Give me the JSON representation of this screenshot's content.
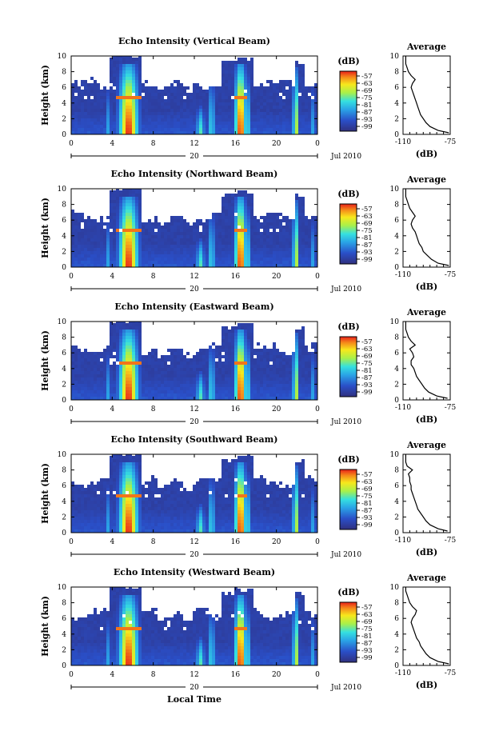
{
  "chart_data": [
    {
      "type": "heatmap",
      "title": "Echo Intensity (Vertical Beam)",
      "ylabel": "Height (km)",
      "xlabel": "",
      "x_ticks": [
        "0",
        "4",
        "8",
        "12",
        "16",
        "20",
        "0"
      ],
      "y_ticks": [
        "0",
        "2",
        "4",
        "6",
        "8",
        "10"
      ],
      "date_label": "20",
      "month_label": "Jul 2010",
      "xlim": [
        0,
        24
      ],
      "ylim": [
        0,
        10
      ],
      "colorbar": {
        "label": "(dB)",
        "ticks": [
          "-57",
          "-63",
          "-69",
          "-75",
          "-81",
          "-87",
          "-93",
          "-99"
        ],
        "range": [
          -99,
          -57
        ]
      },
      "average_profile": {
        "title": "Average",
        "xlabel": "(dB)",
        "x_ticks": [
          "-110",
          "-75"
        ],
        "xlim": [
          -110,
          -75
        ],
        "y_ticks": [
          "0",
          "2",
          "4",
          "6",
          "8",
          "10"
        ],
        "height": [
          0.2,
          0.5,
          1,
          1.5,
          2,
          2.5,
          3,
          3.5,
          4,
          4.5,
          5,
          5.5,
          6,
          6.5,
          7,
          7.5,
          8,
          8.5,
          9,
          9.5,
          10
        ],
        "value": [
          -76,
          -84,
          -90,
          -93,
          -95,
          -97,
          -98,
          -99,
          -100,
          -101,
          -102,
          -103,
          -104,
          -103,
          -101,
          -104,
          -106,
          -107,
          -108,
          -108,
          -108
        ]
      }
    },
    {
      "type": "heatmap",
      "title": "Echo Intensity (Northward Beam)",
      "ylabel": "Height (km)",
      "xlabel": "",
      "x_ticks": [
        "0",
        "4",
        "8",
        "12",
        "16",
        "20",
        "0"
      ],
      "y_ticks": [
        "0",
        "2",
        "4",
        "6",
        "8",
        "10"
      ],
      "date_label": "20",
      "month_label": "Jul 2010",
      "xlim": [
        0,
        24
      ],
      "ylim": [
        0,
        10
      ],
      "colorbar": {
        "label": "(dB)",
        "ticks": [
          "-57",
          "-63",
          "-69",
          "-75",
          "-81",
          "-87",
          "-93",
          "-99"
        ],
        "range": [
          -99,
          -57
        ]
      },
      "average_profile": {
        "title": "Average",
        "xlabel": "(dB)",
        "x_ticks": [
          "-110",
          "-75"
        ],
        "xlim": [
          -110,
          -75
        ],
        "y_ticks": [
          "0",
          "2",
          "4",
          "6",
          "8",
          "10"
        ],
        "height": [
          0.2,
          0.5,
          1,
          1.5,
          2,
          2.5,
          3,
          3.5,
          4,
          4.5,
          5,
          5.5,
          6,
          6.5,
          7,
          7.5,
          8,
          8.5,
          9,
          9.5,
          10
        ],
        "value": [
          -76,
          -84,
          -89,
          -92,
          -95,
          -96,
          -98,
          -99,
          -100,
          -101,
          -103,
          -104,
          -103,
          -101,
          -103,
          -105,
          -106,
          -107,
          -108,
          -108,
          -108
        ]
      }
    },
    {
      "type": "heatmap",
      "title": "Echo Intensity (Eastward Beam)",
      "ylabel": "Height (km)",
      "xlabel": "",
      "x_ticks": [
        "0",
        "4",
        "8",
        "12",
        "16",
        "20",
        "0"
      ],
      "y_ticks": [
        "0",
        "2",
        "4",
        "6",
        "8",
        "10"
      ],
      "date_label": "20",
      "month_label": "Jul 2010",
      "xlim": [
        0,
        24
      ],
      "ylim": [
        0,
        10
      ],
      "colorbar": {
        "label": "(dB)",
        "ticks": [
          "-57",
          "-63",
          "-69",
          "-75",
          "-81",
          "-87",
          "-93",
          "-99"
        ],
        "range": [
          -99,
          -57
        ]
      },
      "average_profile": {
        "title": "Average",
        "xlabel": "(dB)",
        "x_ticks": [
          "-110",
          "-75"
        ],
        "xlim": [
          -110,
          -75
        ],
        "y_ticks": [
          "0",
          "2",
          "4",
          "6",
          "8",
          "10"
        ],
        "height": [
          0.2,
          0.5,
          1,
          1.5,
          2,
          2.5,
          3,
          3.5,
          4,
          4.5,
          5,
          5.5,
          6,
          6.5,
          7,
          7.5,
          8,
          8.5,
          9,
          9.5,
          10
        ],
        "value": [
          -77,
          -85,
          -91,
          -94,
          -96,
          -98,
          -100,
          -101,
          -102,
          -104,
          -104,
          -102,
          -103,
          -105,
          -101,
          -104,
          -106,
          -107,
          -108,
          -108,
          -108
        ]
      }
    },
    {
      "type": "heatmap",
      "title": "Echo Intensity (Southward Beam)",
      "ylabel": "Height (km)",
      "xlabel": "",
      "x_ticks": [
        "0",
        "4",
        "8",
        "12",
        "16",
        "20",
        "0"
      ],
      "y_ticks": [
        "0",
        "2",
        "4",
        "6",
        "8",
        "10"
      ],
      "date_label": "20",
      "month_label": "Jul 2010",
      "xlim": [
        0,
        24
      ],
      "ylim": [
        0,
        10
      ],
      "colorbar": {
        "label": "(dB)",
        "ticks": [
          "-57",
          "-63",
          "-69",
          "-75",
          "-81",
          "-87",
          "-93",
          "-99"
        ],
        "range": [
          -99,
          -57
        ]
      },
      "average_profile": {
        "title": "Average",
        "xlabel": "(dB)",
        "x_ticks": [
          "-110",
          "-75"
        ],
        "xlim": [
          -110,
          -75
        ],
        "y_ticks": [
          "0",
          "2",
          "4",
          "6",
          "8",
          "10"
        ],
        "height": [
          0.2,
          0.5,
          1,
          1.5,
          2,
          2.5,
          3,
          3.5,
          4,
          4.5,
          5,
          5.5,
          6,
          6.5,
          7,
          7.5,
          8,
          8.5,
          9,
          9.5,
          10
        ],
        "value": [
          -77,
          -84,
          -90,
          -93,
          -95,
          -97,
          -99,
          -100,
          -101,
          -102,
          -103,
          -104,
          -104,
          -105,
          -105,
          -106,
          -103,
          -107,
          -108,
          -108,
          -108
        ]
      }
    },
    {
      "type": "heatmap",
      "title": "Echo Intensity (Westward Beam)",
      "ylabel": "Height (km)",
      "xlabel": "Local Time",
      "x_ticks": [
        "0",
        "4",
        "8",
        "12",
        "16",
        "20",
        "0"
      ],
      "y_ticks": [
        "0",
        "2",
        "4",
        "6",
        "8",
        "10"
      ],
      "date_label": "20",
      "month_label": "Jul 2010",
      "xlim": [
        0,
        24
      ],
      "ylim": [
        0,
        10
      ],
      "colorbar": {
        "label": "(dB)",
        "ticks": [
          "-57",
          "-63",
          "-69",
          "-75",
          "-81",
          "-87",
          "-93",
          "-99"
        ],
        "range": [
          -99,
          -57
        ]
      },
      "average_profile": {
        "title": "Average",
        "xlabel": "(dB)",
        "x_ticks": [
          "-110",
          "-75"
        ],
        "xlim": [
          -110,
          -75
        ],
        "y_ticks": [
          "0",
          "2",
          "4",
          "6",
          "8",
          "10"
        ],
        "height": [
          0.2,
          0.5,
          1,
          1.5,
          2,
          2.5,
          3,
          3.5,
          4,
          4.5,
          5,
          5.5,
          6,
          6.5,
          7,
          7.5,
          8,
          8.5,
          9,
          9.5,
          10
        ],
        "value": [
          -76,
          -84,
          -90,
          -93,
          -95,
          -97,
          -98,
          -100,
          -101,
          -102,
          -103,
          -104,
          -103,
          -101,
          -100,
          -103,
          -105,
          -106,
          -107,
          -108,
          -108
        ]
      }
    }
  ]
}
